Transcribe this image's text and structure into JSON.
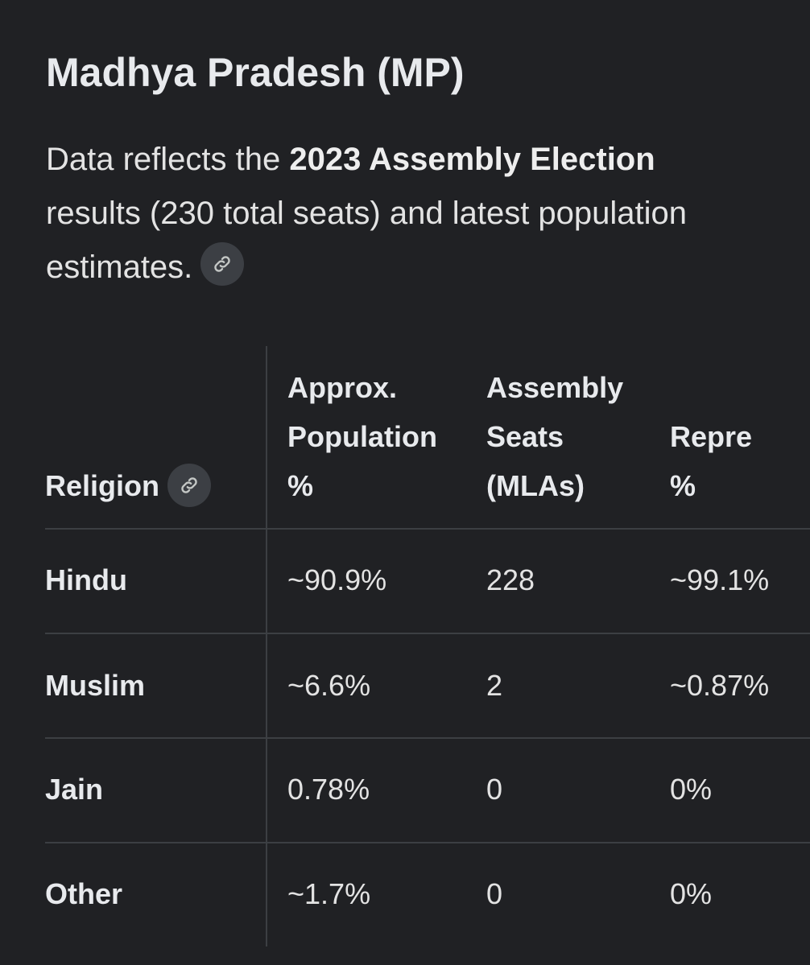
{
  "page": {
    "title": "Madhya Pradesh (MP)",
    "intro": {
      "prefix": "Data reflects the ",
      "bold": "2023 Assembly Election",
      "suffix": " results (230 total seats) and latest population estimates."
    }
  },
  "icons": {
    "source_link": "link-icon",
    "header_link": "link-icon"
  },
  "table": {
    "headers": {
      "religion": "Religion",
      "population": [
        "Approx.",
        "Population",
        "%"
      ],
      "seats": [
        "Assembly",
        "Seats",
        "(MLAs)"
      ],
      "representation": [
        "Repre",
        "%"
      ]
    },
    "rows": [
      {
        "religion": "Hindu",
        "population": "~90.9%",
        "seats": "228",
        "representation": "~99.1%"
      },
      {
        "religion": "Muslim",
        "population": "~6.6%",
        "seats": "2",
        "representation": "~0.87%"
      },
      {
        "religion": "Jain",
        "population": "0.78%",
        "seats": "0",
        "representation": "0%"
      },
      {
        "religion": "Other",
        "population": "~1.7%",
        "seats": "0",
        "representation": "0%"
      }
    ]
  },
  "colors": {
    "background": "#202124",
    "text": "#e8eaed",
    "divider": "#3c3f43",
    "chip": "#3c3f44"
  }
}
